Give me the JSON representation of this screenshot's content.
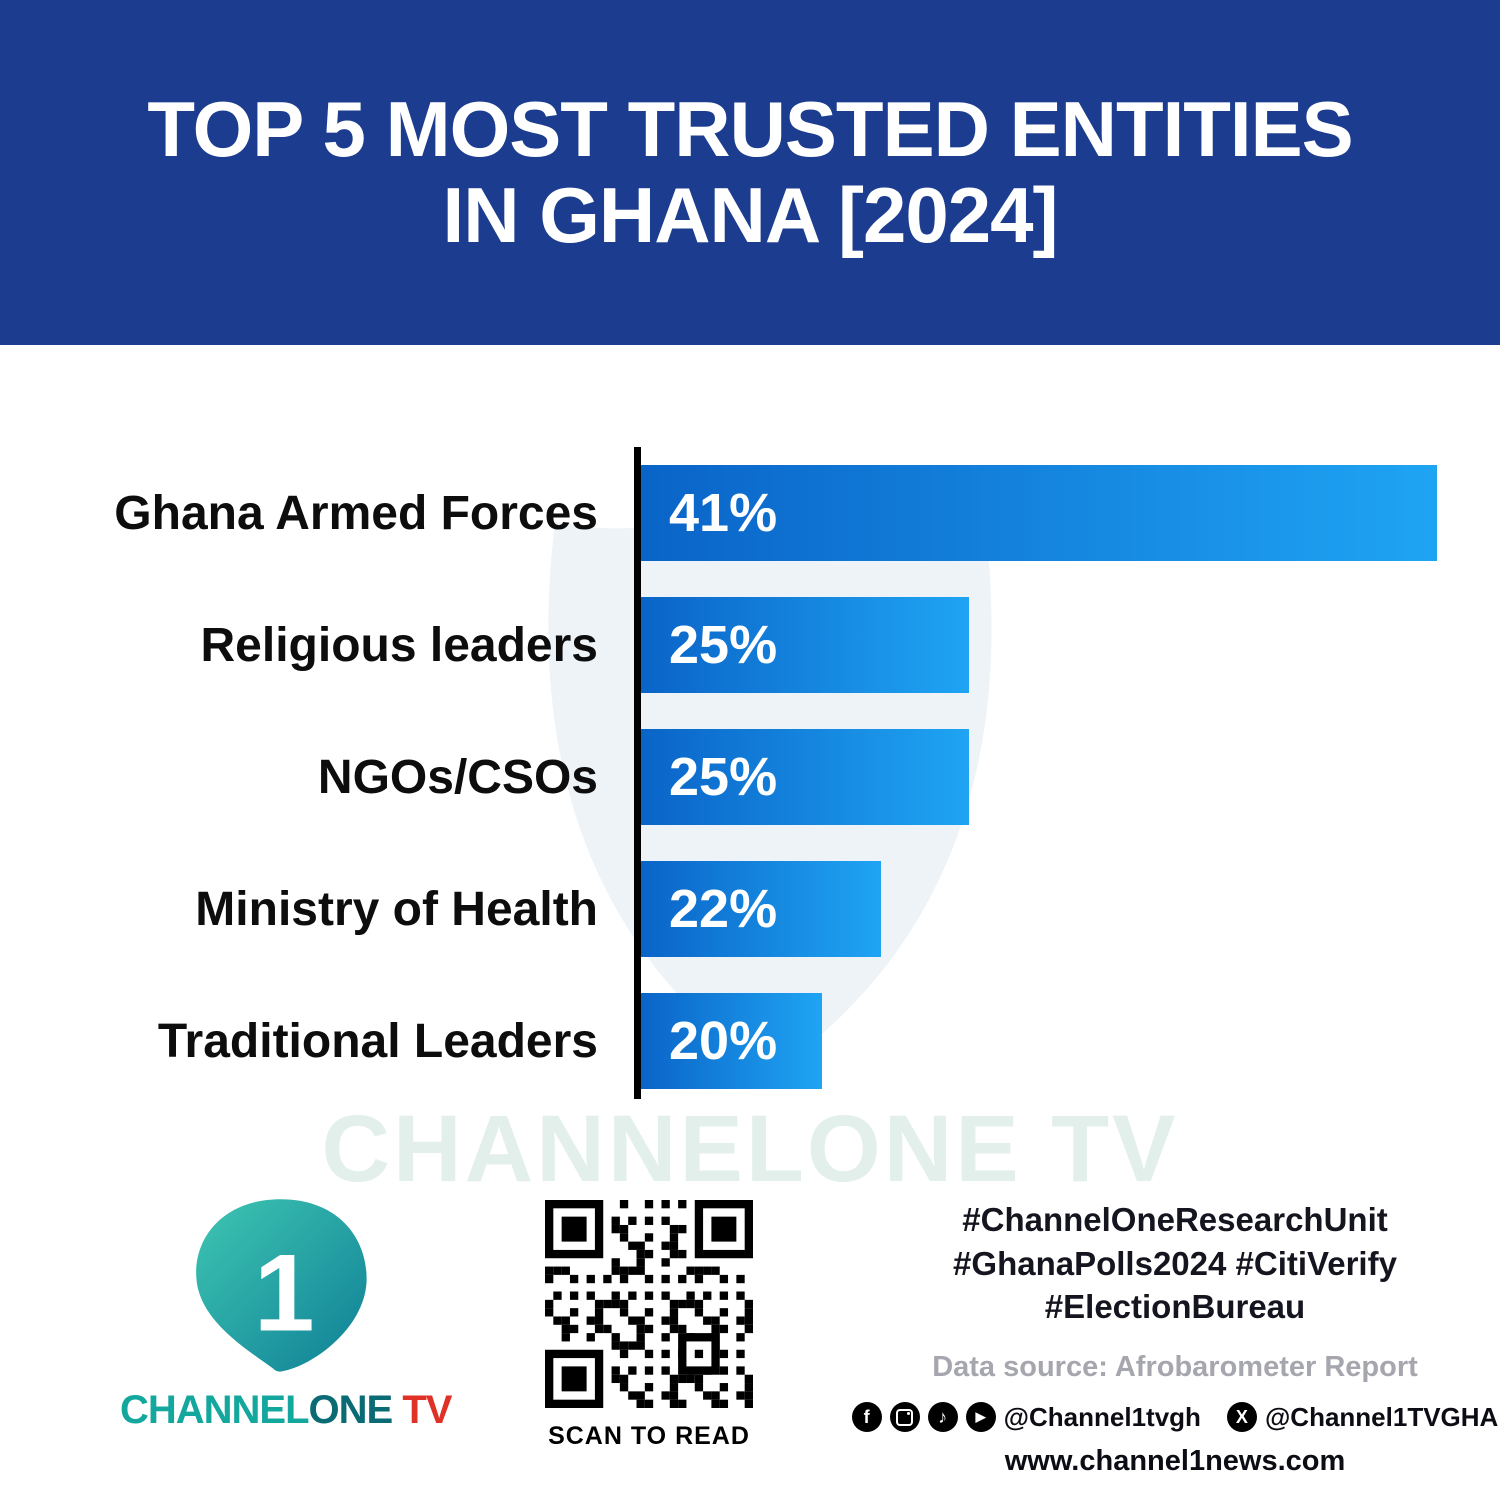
{
  "header": {
    "title_line1": "TOP 5 MOST TRUSTED ENTITIES",
    "title_line2": "IN GHANA [2024]"
  },
  "chart_data": {
    "type": "bar",
    "orientation": "horizontal",
    "title": "Top 5 Most Trusted Entities in Ghana [2024]",
    "categories": [
      "Ghana Armed Forces",
      "Religious leaders",
      "NGOs/CSOs",
      "Ministry of Health",
      "Traditional Leaders"
    ],
    "values": [
      41,
      25,
      25,
      22,
      20
    ],
    "labels": [
      "41%",
      "25%",
      "25%",
      "22%",
      "20%"
    ],
    "display_widths_pct": [
      100,
      41.2,
      41.2,
      30.2,
      22.7
    ],
    "xlim": [
      0,
      41
    ],
    "grid": false,
    "legend": "none",
    "bar_gradient": [
      "#0a64c8",
      "#1fa4f3"
    ],
    "axis_color": "#000000"
  },
  "watermark": {
    "text": "CHANNELONE TV"
  },
  "footer": {
    "logo": {
      "numeral": "1",
      "brand_channel": "CHANNEL",
      "brand_one": "ONE",
      "brand_tv": " TV"
    },
    "qr": {
      "caption": "SCAN TO READ"
    },
    "hashtags_line1": "#ChannelOneResearchUnit",
    "hashtags_line2": "#GhanaPolls2024 #CitiVerify",
    "hashtags_line3": "#ElectionBureau",
    "data_source": "Data source: Afrobarometer Report",
    "social": {
      "facebook_glyph": "f",
      "tiktok_glyph": "♪",
      "youtube_glyph": "▶",
      "x_glyph": "X",
      "handle_main": "@Channel1tvgh",
      "handle_x": "@Channel1TVGHA",
      "website": "www.channel1news.com"
    }
  },
  "colors": {
    "header_bg": "#1c3d8f",
    "bar_start": "#0a64c8",
    "bar_end": "#1fa4f3",
    "tv_red": "#e03127",
    "teal": "#14a79d"
  }
}
